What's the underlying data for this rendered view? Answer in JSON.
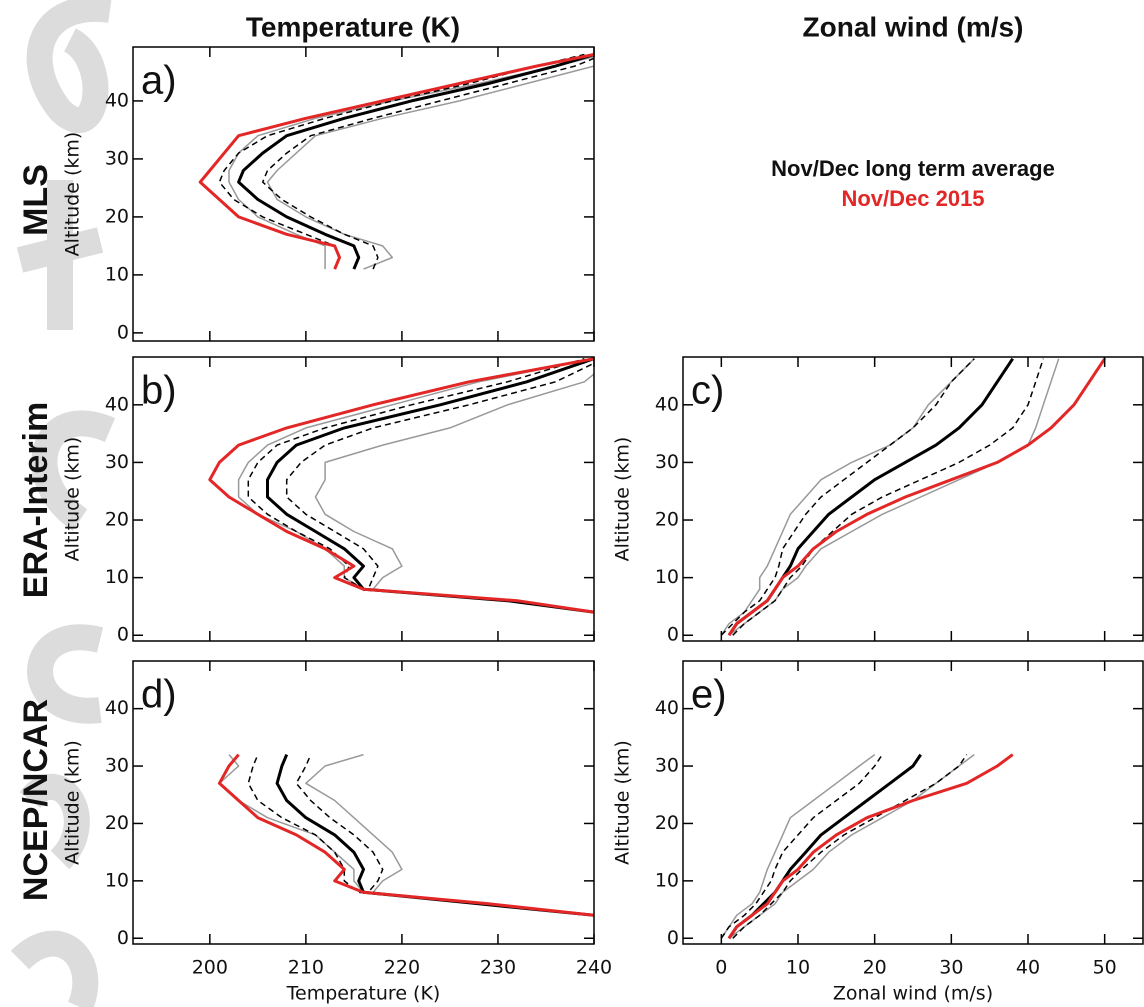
{
  "column_titles": [
    "Temperature (K)",
    "Zonal wind (m/s)"
  ],
  "row_labels": [
    "MLS",
    "ERA-Interim",
    "NCEP/NCAR"
  ],
  "chart_data": [
    {
      "type": "line",
      "label": "a)",
      "ylabel": "Altitude (km)",
      "show_xticklabels": false,
      "xlim": [
        192,
        240
      ],
      "ylim": [
        -1.4,
        49.3
      ],
      "xticks": [
        200,
        210,
        220,
        230,
        240
      ],
      "yticks": [
        0,
        10,
        20,
        30,
        40
      ],
      "y": [
        11,
        13,
        15,
        17,
        20,
        23,
        26,
        28,
        31,
        34,
        37,
        40,
        43,
        46,
        48
      ],
      "series": [
        {
          "color": "#999999",
          "width": 1.5,
          "values": [
            216,
            219,
            218,
            214,
            210,
            207,
            206,
            207,
            209,
            211,
            218,
            226,
            233,
            240,
            242
          ]
        },
        {
          "color": "#999999",
          "width": 1.5,
          "values": [
            212,
            212,
            212,
            209,
            205,
            203,
            202,
            202,
            203,
            205,
            211,
            219,
            228,
            236,
            241
          ]
        },
        {
          "color": "#000000",
          "width": 1.5,
          "dash": true,
          "values": [
            213,
            213.5,
            213,
            210,
            205.5,
            202.5,
            201,
            201.5,
            203,
            206,
            212,
            219,
            227,
            234,
            239
          ]
        },
        {
          "color": "#000000",
          "width": 1.5,
          "dash": true,
          "values": [
            217,
            217.5,
            217,
            214,
            210.5,
            207.5,
            205.5,
            206,
            208,
            210.5,
            217,
            224,
            231,
            238,
            241
          ]
        },
        {
          "name": "Nov/Dec long term average",
          "color": "#000000",
          "width": 3,
          "values": [
            215,
            215.5,
            215,
            212,
            208,
            205,
            203,
            203.5,
            205.5,
            208,
            214,
            221,
            229,
            236,
            240
          ]
        },
        {
          "name": "Nov/Dec 2015",
          "color": "#e32626",
          "width": 3,
          "values": [
            213,
            213.5,
            213,
            208,
            203,
            201,
            199,
            200,
            201.5,
            203,
            210,
            218,
            226,
            234,
            240
          ]
        }
      ]
    },
    {
      "type": "line",
      "label": "b)",
      "ylabel": "Altitude (km)",
      "show_xticklabels": false,
      "xlim": [
        192,
        240
      ],
      "ylim": [
        -1,
        48.3
      ],
      "xticks": [
        200,
        210,
        220,
        230,
        240
      ],
      "yticks": [
        0,
        10,
        20,
        30,
        40
      ],
      "y": [
        4,
        6,
        8,
        10,
        12,
        15,
        18,
        21,
        24,
        27,
        30,
        33,
        36,
        40,
        44,
        48
      ],
      "series": [
        {
          "color": "#999999",
          "width": 1.5,
          "values": [
            240,
            231,
            217,
            218,
            220,
            219,
            215,
            212,
            211,
            212,
            212,
            218,
            225,
            231,
            239,
            242
          ]
        },
        {
          "color": "#999999",
          "width": 1.5,
          "values": [
            240,
            231,
            216,
            214,
            214,
            212,
            209,
            205,
            203,
            203,
            204,
            206,
            210,
            219,
            228,
            240
          ]
        },
        {
          "color": "#000000",
          "width": 1.5,
          "dash": true,
          "values": [
            240,
            231,
            216,
            214,
            214.5,
            212.5,
            209,
            206,
            204,
            204,
            205,
            207,
            212,
            221,
            231,
            239
          ]
        },
        {
          "color": "#000000",
          "width": 1.5,
          "dash": true,
          "values": [
            240,
            231,
            216.5,
            217,
            217.5,
            216,
            213,
            210,
            208,
            208,
            209.5,
            212,
            217,
            227,
            236,
            241
          ]
        },
        {
          "color": "#000000",
          "width": 3,
          "values": [
            240,
            231,
            216,
            215,
            216,
            214,
            211,
            208,
            206,
            206,
            207,
            209,
            214,
            224,
            233,
            240
          ]
        },
        {
          "color": "#e32626",
          "width": 3,
          "values": [
            240,
            232,
            216,
            213,
            215,
            212,
            208,
            205,
            202,
            200,
            201,
            203,
            208,
            217,
            227,
            240
          ]
        }
      ]
    },
    {
      "type": "line",
      "label": "c)",
      "ylabel": "Altitude (km)",
      "show_xticklabels": false,
      "xlim": [
        -5,
        55
      ],
      "ylim": [
        -1,
        48.3
      ],
      "xticks": [
        0,
        10,
        20,
        30,
        40,
        50
      ],
      "yticks": [
        0,
        10,
        20,
        30,
        40
      ],
      "y": [
        0,
        2,
        4,
        6,
        8,
        10,
        12,
        15,
        18,
        21,
        24,
        27,
        30,
        33,
        36,
        40,
        44,
        48
      ],
      "series": [
        {
          "color": "#999999",
          "width": 1.5,
          "values": [
            0,
            1,
            3,
            4,
            5,
            5,
            6,
            7,
            8,
            9,
            11,
            13,
            17,
            22,
            25,
            27,
            30,
            33
          ]
        },
        {
          "color": "#999999",
          "width": 1.5,
          "values": [
            1,
            3,
            5,
            7,
            8,
            10,
            11,
            13,
            17,
            21,
            26,
            31,
            36,
            40,
            41,
            42,
            43,
            44
          ]
        },
        {
          "color": "#000000",
          "width": 1.5,
          "dash": true,
          "values": [
            0,
            1.5,
            3,
            5,
            6,
            7,
            7.5,
            8,
            9.5,
            11,
            13,
            16,
            19,
            22,
            25,
            28,
            30,
            33
          ]
        },
        {
          "color": "#000000",
          "width": 1.5,
          "dash": true,
          "values": [
            1.5,
            3,
            5,
            7,
            8,
            9,
            10.5,
            12,
            14.5,
            17,
            21,
            26,
            31,
            35,
            38,
            40,
            41,
            42
          ]
        },
        {
          "color": "#000000",
          "width": 3,
          "values": [
            1,
            2,
            4,
            6,
            7,
            8,
            9,
            10,
            12,
            14,
            17,
            20,
            24,
            28,
            31,
            34,
            36,
            38
          ]
        },
        {
          "color": "#e32626",
          "width": 3,
          "values": [
            1,
            2,
            4,
            6,
            7,
            8,
            10,
            12,
            15,
            19,
            24,
            30,
            36,
            40,
            43,
            46,
            48,
            50
          ]
        }
      ]
    },
    {
      "type": "line",
      "label": "d)",
      "ylabel": "Altitude (km)",
      "xlabel": "Temperature (K)",
      "show_xticklabels": true,
      "xlim": [
        192,
        240
      ],
      "ylim": [
        -1,
        48.3
      ],
      "xticks": [
        200,
        210,
        220,
        230,
        240
      ],
      "yticks": [
        0,
        10,
        20,
        30,
        40
      ],
      "y": [
        4,
        6,
        8,
        10,
        12,
        15,
        18,
        21,
        24,
        27,
        30,
        32
      ],
      "series": [
        {
          "color": "#999999",
          "width": 1.5,
          "values": [
            240,
            229,
            217,
            218,
            220,
            219,
            217,
            215,
            213,
            210,
            212,
            216
          ]
        },
        {
          "color": "#999999",
          "width": 1.5,
          "values": [
            240,
            228,
            216,
            215,
            215,
            213,
            211,
            206,
            203,
            201,
            203,
            202
          ]
        },
        {
          "color": "#000000",
          "width": 1.5,
          "dash": true,
          "values": [
            240,
            228,
            215.5,
            214,
            214,
            213,
            211,
            207.5,
            205,
            204,
            204.5,
            205
          ]
        },
        {
          "color": "#000000",
          "width": 1.5,
          "dash": true,
          "values": [
            240,
            228,
            216.5,
            217.5,
            218,
            217,
            215,
            212.5,
            210.5,
            209,
            210,
            210.5
          ]
        },
        {
          "color": "#000000",
          "width": 3,
          "values": [
            240,
            228,
            216,
            215.5,
            216,
            215,
            213,
            210,
            208,
            207,
            207.5,
            208
          ]
        },
        {
          "color": "#e32626",
          "width": 3,
          "values": [
            240,
            229,
            216,
            213,
            214,
            212,
            209,
            205,
            203,
            201,
            202,
            203
          ]
        }
      ]
    },
    {
      "type": "line",
      "label": "e)",
      "ylabel": "Altitude (km)",
      "xlabel": "Zonal wind (m/s)",
      "show_xticklabels": true,
      "xlim": [
        -5,
        55
      ],
      "ylim": [
        -1,
        48.3
      ],
      "xticks": [
        0,
        10,
        20,
        30,
        40,
        50
      ],
      "yticks": [
        0,
        10,
        20,
        30,
        40
      ],
      "y": [
        0,
        2,
        4,
        6,
        8,
        10,
        12,
        15,
        18,
        21,
        24,
        27,
        30,
        32
      ],
      "series": [
        {
          "color": "#999999",
          "width": 1.5,
          "values": [
            0,
            1,
            2,
            4,
            5,
            5.5,
            6,
            7,
            8,
            9,
            12,
            15,
            18,
            20
          ]
        },
        {
          "color": "#999999",
          "width": 1.5,
          "values": [
            1,
            3,
            5,
            7,
            8,
            10,
            12,
            14,
            17,
            21,
            25,
            28,
            31,
            33
          ]
        },
        {
          "color": "#000000",
          "width": 1.5,
          "dash": true,
          "values": [
            0,
            1,
            3,
            4.5,
            5.5,
            6.5,
            7,
            8,
            10,
            12,
            15,
            18,
            20,
            21
          ]
        },
        {
          "color": "#000000",
          "width": 1.5,
          "dash": true,
          "values": [
            1.5,
            3,
            5,
            6.5,
            8,
            9,
            10.5,
            13,
            16,
            20,
            24,
            28,
            31,
            32
          ]
        },
        {
          "color": "#000000",
          "width": 3,
          "values": [
            1,
            2,
            4,
            5.5,
            7,
            8,
            9,
            11,
            13,
            16,
            19,
            22,
            25,
            26
          ]
        },
        {
          "color": "#e32626",
          "width": 3,
          "values": [
            1,
            2,
            4,
            6,
            7,
            8,
            10,
            12,
            15,
            19,
            25,
            32,
            36,
            38
          ]
        }
      ]
    }
  ]
}
